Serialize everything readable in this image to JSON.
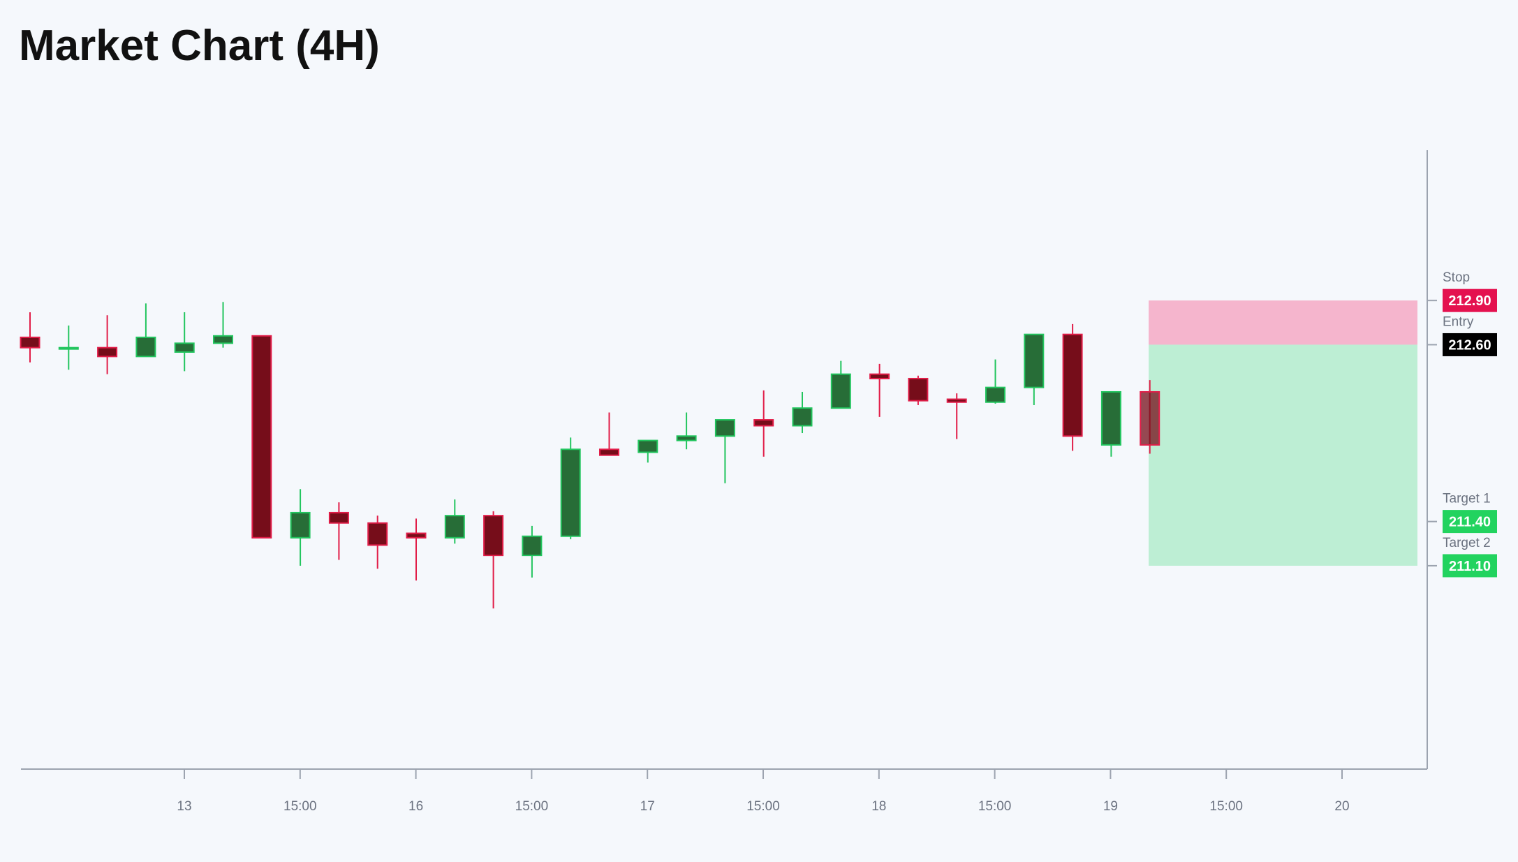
{
  "title": "Market Chart (4H)",
  "colors": {
    "background": "#f5f8fc",
    "up_body": "#276d37",
    "up_border": "#22c55e",
    "down_body": "#760d1a",
    "down_border": "#e11d48",
    "stop_zone": "#f5b5cd",
    "target_zone": "#bdeed4",
    "axis": "#9ca3af",
    "stop_badge": "#e4114f",
    "entry_badge": "#000000",
    "target_badge": "#22d35f"
  },
  "chart_data": {
    "type": "candlestick",
    "title": "Market Chart (4H)",
    "x_ticks": [
      "13",
      "15:00",
      "16",
      "15:00",
      "17",
      "15:00",
      "18",
      "15:00",
      "19",
      "15:00",
      "20"
    ],
    "ylim": [
      209.72,
      213.92
    ],
    "candles": [
      {
        "o": 212.65,
        "h": 212.82,
        "l": 212.48,
        "c": 212.58
      },
      {
        "o": 212.58,
        "h": 212.73,
        "l": 212.43,
        "c": 212.58
      },
      {
        "o": 212.58,
        "h": 212.8,
        "l": 212.4,
        "c": 212.52
      },
      {
        "o": 212.52,
        "h": 212.88,
        "l": 212.52,
        "c": 212.65
      },
      {
        "o": 212.55,
        "h": 212.82,
        "l": 212.42,
        "c": 212.61
      },
      {
        "o": 212.61,
        "h": 212.89,
        "l": 212.58,
        "c": 212.66
      },
      {
        "o": 212.66,
        "h": 212.66,
        "l": 211.29,
        "c": 211.29
      },
      {
        "o": 211.29,
        "h": 211.62,
        "l": 211.1,
        "c": 211.46
      },
      {
        "o": 211.46,
        "h": 211.53,
        "l": 211.14,
        "c": 211.39
      },
      {
        "o": 211.39,
        "h": 211.44,
        "l": 211.08,
        "c": 211.24
      },
      {
        "o": 211.32,
        "h": 211.42,
        "l": 211.0,
        "c": 211.29
      },
      {
        "o": 211.29,
        "h": 211.55,
        "l": 211.25,
        "c": 211.44
      },
      {
        "o": 211.44,
        "h": 211.47,
        "l": 210.81,
        "c": 211.17
      },
      {
        "o": 211.17,
        "h": 211.37,
        "l": 211.02,
        "c": 211.3
      },
      {
        "o": 211.3,
        "h": 211.97,
        "l": 211.28,
        "c": 211.89
      },
      {
        "o": 211.89,
        "h": 212.14,
        "l": 211.85,
        "c": 211.85
      },
      {
        "o": 211.87,
        "h": 211.94,
        "l": 211.8,
        "c": 211.95
      },
      {
        "o": 211.95,
        "h": 212.14,
        "l": 211.89,
        "c": 211.98
      },
      {
        "o": 211.98,
        "h": 212.07,
        "l": 211.66,
        "c": 212.09
      },
      {
        "o": 212.09,
        "h": 212.29,
        "l": 211.84,
        "c": 212.05
      },
      {
        "o": 212.05,
        "h": 212.28,
        "l": 212.0,
        "c": 212.17
      },
      {
        "o": 212.17,
        "h": 212.49,
        "l": 212.17,
        "c": 212.4
      },
      {
        "o": 212.4,
        "h": 212.47,
        "l": 212.11,
        "c": 212.37
      },
      {
        "o": 212.37,
        "h": 212.39,
        "l": 212.19,
        "c": 212.22
      },
      {
        "o": 212.23,
        "h": 212.27,
        "l": 211.96,
        "c": 212.21
      },
      {
        "o": 212.21,
        "h": 212.5,
        "l": 212.2,
        "c": 212.31
      },
      {
        "o": 212.31,
        "h": 212.67,
        "l": 212.19,
        "c": 212.67
      },
      {
        "o": 212.67,
        "h": 212.74,
        "l": 211.88,
        "c": 211.98
      },
      {
        "o": 211.92,
        "h": 212.28,
        "l": 211.84,
        "c": 212.28
      },
      {
        "o": 212.28,
        "h": 212.36,
        "l": 211.86,
        "c": 211.92
      }
    ],
    "zones": [
      {
        "name": "stop",
        "from": 212.6,
        "to": 212.9
      },
      {
        "name": "target",
        "from": 211.1,
        "to": 212.6
      }
    ],
    "levels": [
      {
        "label": "Stop",
        "value": "212.90",
        "price": 212.9,
        "badge": "stop_badge"
      },
      {
        "label": "Entry",
        "value": "212.60",
        "price": 212.6,
        "badge": "entry_badge"
      },
      {
        "label": "Target 1",
        "value": "211.40",
        "price": 211.4,
        "badge": "target_badge"
      },
      {
        "label": "Target 2",
        "value": "211.10",
        "price": 211.1,
        "badge": "target_badge"
      }
    ]
  }
}
